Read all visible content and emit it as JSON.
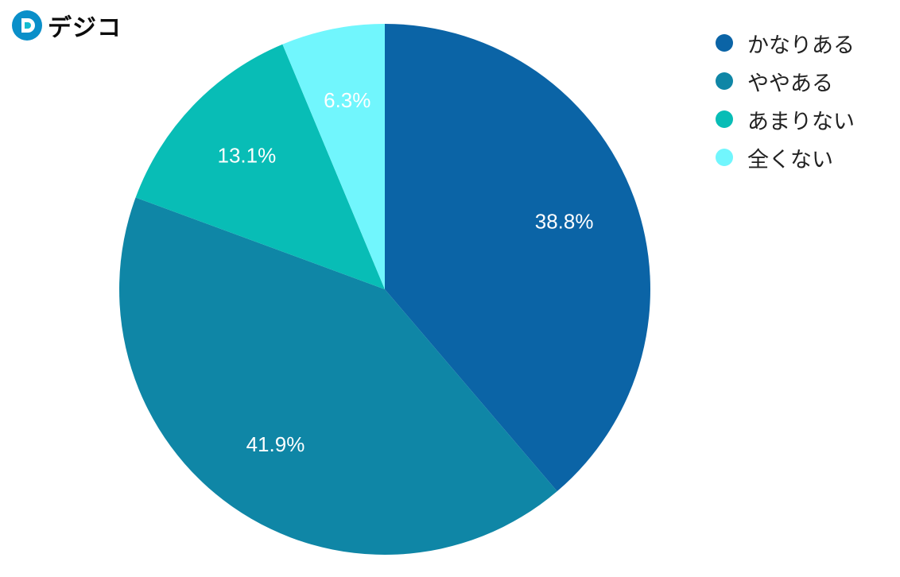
{
  "brand": {
    "name": "デジコ",
    "icon": "digico-logo-icon",
    "colors": [
      "#0a8fc9",
      "#13bcd0"
    ]
  },
  "chart_data": {
    "type": "pie",
    "categories": [
      "かなりある",
      "ややある",
      "あまりない",
      "全くない"
    ],
    "values": [
      38.8,
      41.9,
      13.1,
      6.3
    ],
    "value_labels": [
      "38.8%",
      "41.9%",
      "13.1%",
      "6.3%"
    ],
    "colors": [
      "#0b64a6",
      "#0f86a6",
      "#08bdb6",
      "#71f6fd"
    ],
    "start_angle": "12 o'clock",
    "direction": "clockwise",
    "legend_position": "top-right"
  }
}
